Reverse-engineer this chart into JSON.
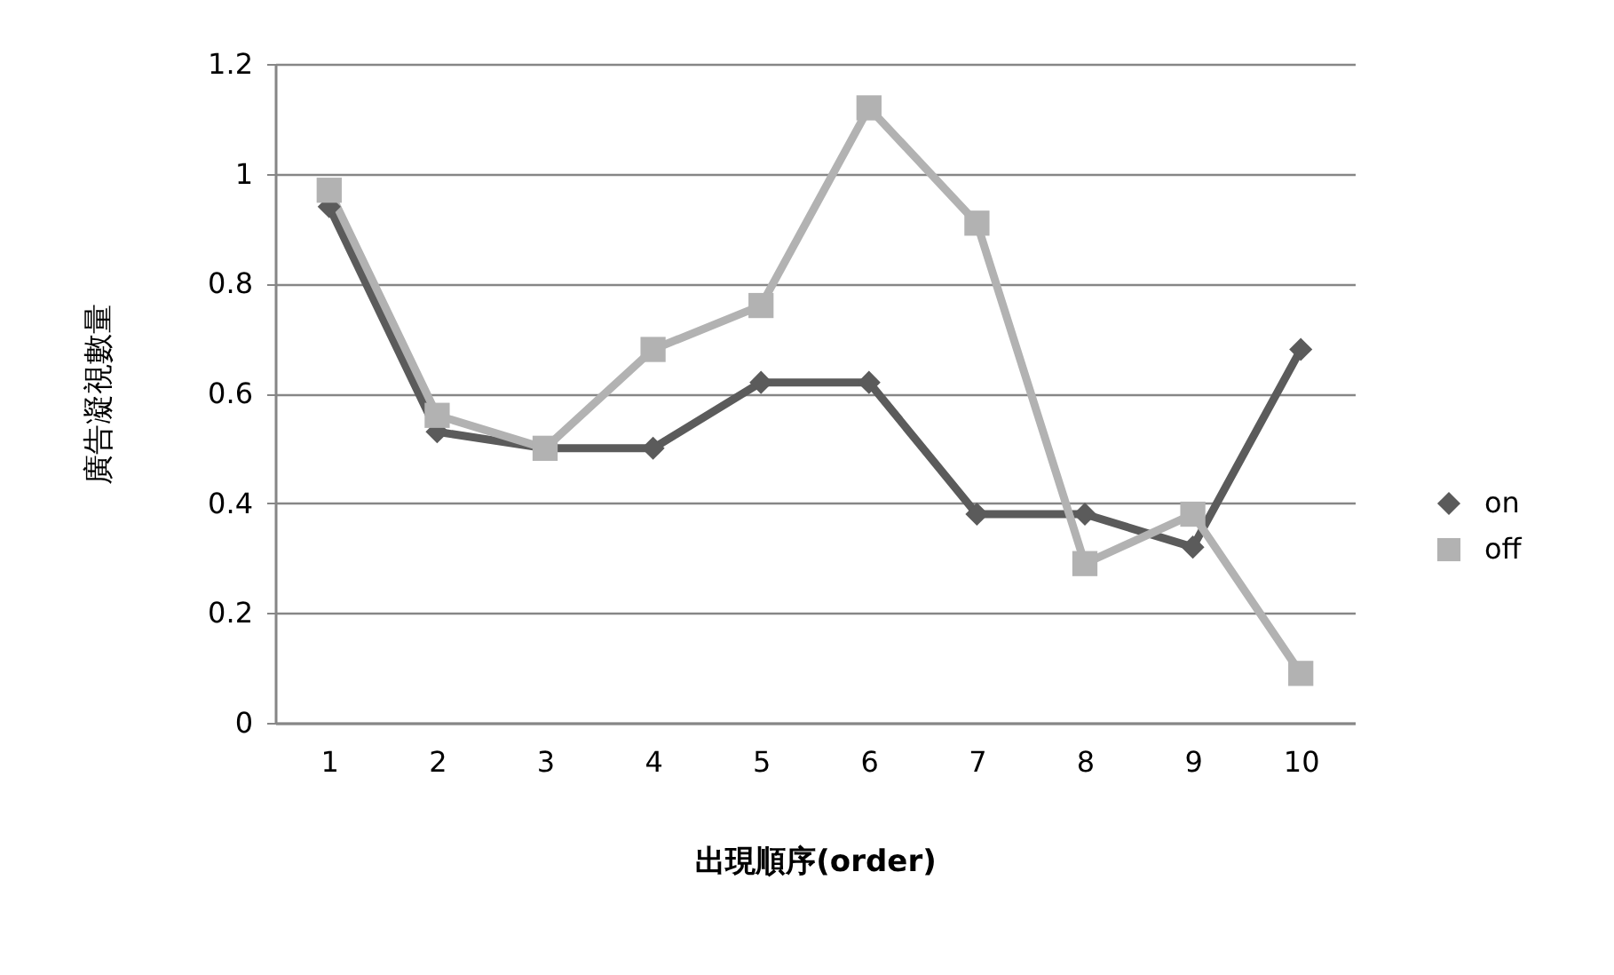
{
  "chart_data": {
    "type": "line",
    "xlabel": "出現順序(order)",
    "ylabel": "廣告凝視數量",
    "categories": [
      "1",
      "2",
      "3",
      "4",
      "5",
      "6",
      "7",
      "8",
      "9",
      "10"
    ],
    "series": [
      {
        "name": "on",
        "color": "#5b5b5b",
        "marker": "diamond",
        "values": [
          0.94,
          0.53,
          0.5,
          0.5,
          0.62,
          0.62,
          0.38,
          0.38,
          0.32,
          0.68
        ]
      },
      {
        "name": "off",
        "color": "#b2b2b2",
        "marker": "square",
        "values": [
          0.97,
          0.56,
          0.5,
          0.68,
          0.76,
          1.12,
          0.91,
          0.29,
          0.38,
          0.09
        ]
      }
    ],
    "ylim": [
      0,
      1.2
    ],
    "yticks": [
      0,
      0.2,
      0.4,
      0.6,
      0.8,
      1,
      1.2
    ],
    "grid": "y",
    "legend": "right"
  }
}
